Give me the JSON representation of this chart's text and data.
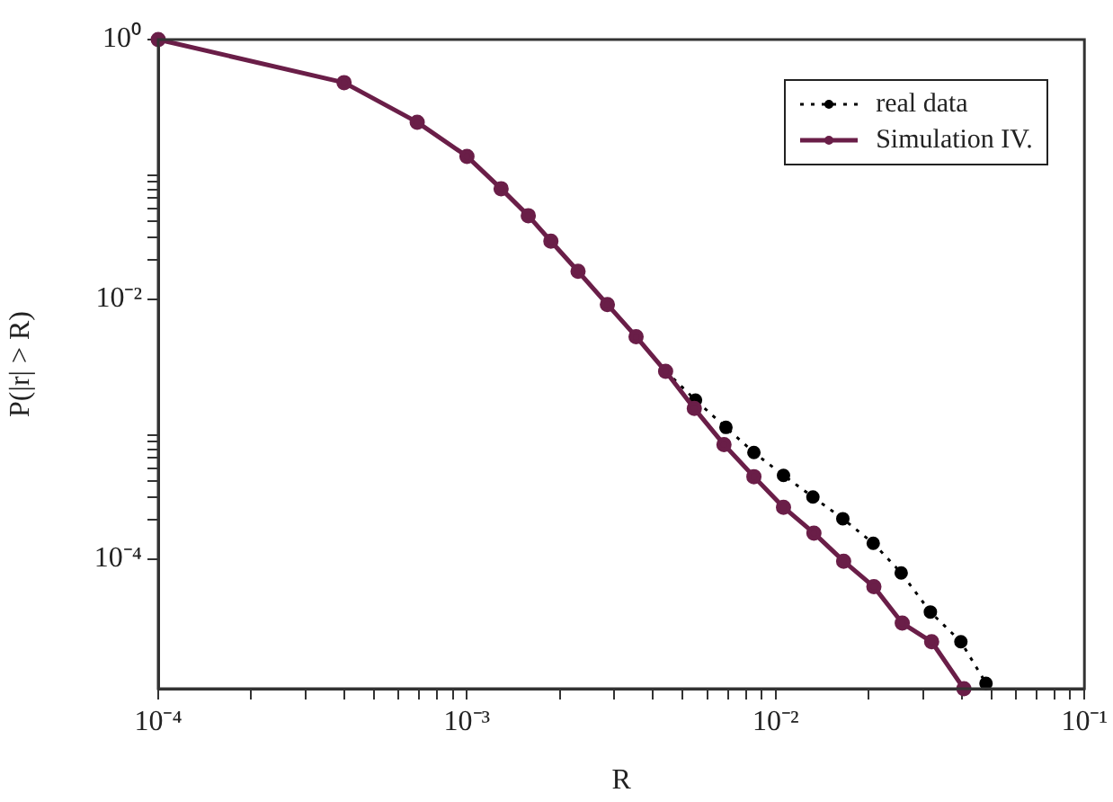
{
  "chart_data": {
    "type": "line",
    "xlabel": "R",
    "ylabel": "P(|r| > R)",
    "log": "xy",
    "grid": false,
    "legend": "top right",
    "marker": "circle",
    "xlim": [
      0.0001,
      0.1
    ],
    "ylim": [
      1e-05,
      1
    ],
    "xticks": [
      {
        "value": 0.0001,
        "label": "10⁻⁴"
      },
      {
        "value": 0.0002,
        "label": null
      },
      {
        "value": 0.0003,
        "label": null
      },
      {
        "value": 0.0004,
        "label": null
      },
      {
        "value": 0.0005,
        "label": null
      },
      {
        "value": 0.0006,
        "label": null
      },
      {
        "value": 0.0007,
        "label": null
      },
      {
        "value": 0.0008,
        "label": null
      },
      {
        "value": 0.0009,
        "label": null
      },
      {
        "value": 0.001,
        "label": "10⁻³"
      },
      {
        "value": 0.002,
        "label": null
      },
      {
        "value": 0.003,
        "label": null
      },
      {
        "value": 0.004,
        "label": null
      },
      {
        "value": 0.005,
        "label": null
      },
      {
        "value": 0.006,
        "label": null
      },
      {
        "value": 0.007,
        "label": null
      },
      {
        "value": 0.008,
        "label": null
      },
      {
        "value": 0.009,
        "label": null
      },
      {
        "value": 0.01,
        "label": "10⁻²"
      },
      {
        "value": 0.02,
        "label": null
      },
      {
        "value": 0.03,
        "label": null
      },
      {
        "value": 0.04,
        "label": null
      },
      {
        "value": 0.05,
        "label": null
      },
      {
        "value": 0.06,
        "label": null
      },
      {
        "value": 0.07,
        "label": null
      },
      {
        "value": 0.08,
        "label": null
      },
      {
        "value": 0.09,
        "label": null
      },
      {
        "value": 0.1,
        "label": "10⁻¹"
      }
    ],
    "yticks": [
      {
        "value": 1,
        "label": "10⁰"
      },
      {
        "value": 0.09,
        "label": null
      },
      {
        "value": 0.08,
        "label": null
      },
      {
        "value": 0.07,
        "label": null
      },
      {
        "value": 0.06,
        "label": null
      },
      {
        "value": 0.05,
        "label": null
      },
      {
        "value": 0.04,
        "label": null
      },
      {
        "value": 0.03,
        "label": null
      },
      {
        "value": 0.02,
        "label": null
      },
      {
        "value": 0.01,
        "label": "10⁻²"
      },
      {
        "value": 0.0009,
        "label": null
      },
      {
        "value": 0.0008,
        "label": null
      },
      {
        "value": 0.0007,
        "label": null
      },
      {
        "value": 0.0006,
        "label": null
      },
      {
        "value": 0.0005,
        "label": null
      },
      {
        "value": 0.0004,
        "label": null
      },
      {
        "value": 0.0003,
        "label": null
      },
      {
        "value": 0.0002,
        "label": null
      },
      {
        "value": 0.0001,
        "label": "10⁻⁴"
      }
    ],
    "series": [
      {
        "name": "real data",
        "color": "#000000",
        "line_style": "dotted",
        "x": [
          0.0044,
          0.0055,
          0.0069,
          0.0085,
          0.0106,
          0.0132,
          0.0165,
          0.0207,
          0.0255,
          0.0317,
          0.0398,
          0.048
        ],
        "values": [
          0.0028,
          0.00167,
          0.00103,
          0.00066,
          0.00044,
          0.0003,
          0.000204,
          0.000132,
          7.8e-05,
          3.9e-05,
          2.3e-05,
          1.1e-05
        ]
      },
      {
        "name": "Simulation IV.",
        "color": "#6a1e48",
        "line_style": "solid",
        "x": [
          0.0001,
          0.0004,
          0.00069,
          0.001,
          0.00129,
          0.00158,
          0.00187,
          0.00229,
          0.00285,
          0.00353,
          0.0044,
          0.00545,
          0.0068,
          0.0085,
          0.0106,
          0.0133,
          0.0166,
          0.0208,
          0.0257,
          0.032,
          0.0407
        ],
        "values": [
          1,
          0.466,
          0.231,
          0.126,
          0.071,
          0.044,
          0.028,
          0.0164,
          0.0091,
          0.00515,
          0.00278,
          0.00144,
          0.00076,
          0.00043,
          0.00025,
          0.000158,
          9.6e-05,
          6.1e-05,
          3.2e-05,
          2.3e-05,
          1e-05
        ]
      }
    ]
  }
}
